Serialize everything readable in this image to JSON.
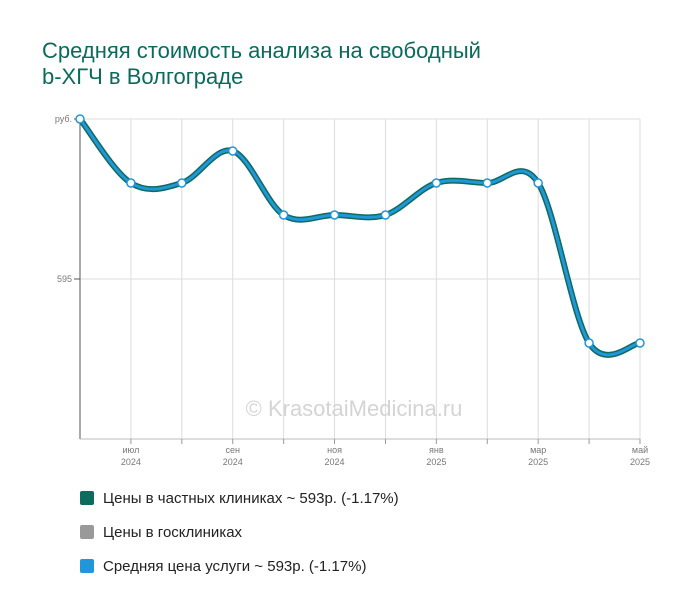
{
  "title_lines": [
    "Средняя стоимость анализа на свободный",
    "b-ХГЧ в Волгограде"
  ],
  "watermark": "© KrasotaiMedicina.ru",
  "colors": {
    "private": "#0e6b5e",
    "public": "#999999",
    "average": "#2196d9",
    "title": "#0a6b5c",
    "grid": "#dddddd"
  },
  "legend": [
    {
      "label": "Цены в частных клиниках ~ 593р. (-1.17%)",
      "color": "#0e6b5e"
    },
    {
      "label": "Цены в госклиниках",
      "color": "#999999"
    },
    {
      "label": "Средняя цена услуги ~ 593р. (-1.17%)",
      "color": "#2196d9"
    }
  ],
  "chart_data": {
    "type": "line",
    "title": "Средняя стоимость анализа на свободный b-ХГЧ в Волгограде",
    "xlabel": "",
    "ylabel": "",
    "y_tick_labels": [
      {
        "value": 600,
        "label": "руб."
      },
      {
        "value": 595,
        "label": "595"
      }
    ],
    "ylim": [
      590,
      600
    ],
    "x_tick_labels": [
      {
        "index": 1,
        "month": "июл",
        "year": "2024"
      },
      {
        "index": 3,
        "month": "сен",
        "year": "2024"
      },
      {
        "index": 5,
        "month": "ноя",
        "year": "2024"
      },
      {
        "index": 7,
        "month": "янв",
        "year": "2025"
      },
      {
        "index": 9,
        "month": "мар",
        "year": "2025"
      },
      {
        "index": 11,
        "month": "май",
        "year": "2025"
      }
    ],
    "x": [
      "июн 2024",
      "июл 2024",
      "авг 2024",
      "сен 2024",
      "окт 2024",
      "ноя 2024",
      "дек 2024",
      "янв 2025",
      "фев 2025",
      "мар 2025",
      "апр 2025",
      "май 2025"
    ],
    "grid": true,
    "series": [
      {
        "name": "Цены в частных клиниках ~ 593р. (-1.17%)",
        "values": [
          600,
          598,
          598,
          599,
          597,
          597,
          597,
          598,
          598,
          598,
          593,
          593
        ]
      },
      {
        "name": "Средняя цена услуги ~ 593р. (-1.17%)",
        "values": [
          600,
          598,
          598,
          599,
          597,
          597,
          597,
          598,
          598,
          598,
          593,
          593
        ]
      }
    ]
  }
}
